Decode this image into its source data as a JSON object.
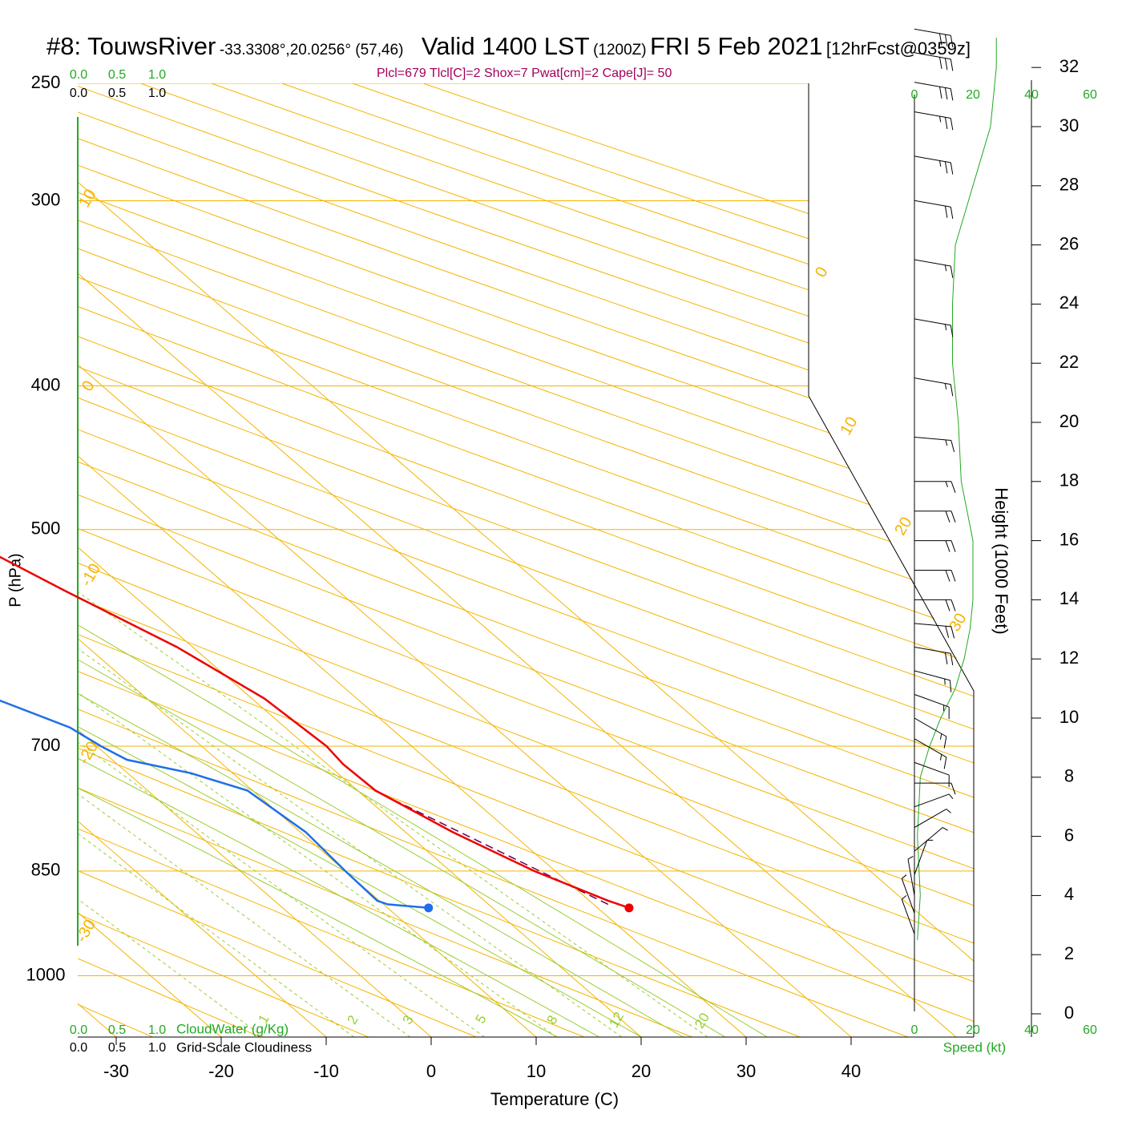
{
  "header": {
    "station": "#8: TouwsRiver",
    "coords": "-33.3308°,20.0256° (57,46)",
    "valid_label": "Valid 1400 LST",
    "zulu": "(1200Z)",
    "date": "FRI 5 Feb 2021",
    "forecast": "[12hrFcst@0359z]"
  },
  "stats_line": "Plcl=679 Tlcl[C]=2 Shox=7 Pwat[cm]=2 Cape[J]= 50",
  "colors": {
    "isotherm": "#f5b400",
    "dry_adiabat": "#9acd32",
    "mixing_ratio": "#9acd32",
    "temperature": "#ee0000",
    "dewpoint": "#1e6fe8",
    "parcel": "#6a0050",
    "cloud_scale": "#22aa22",
    "speed_curve": "#22aa22",
    "barb": "#000000"
  },
  "chart_data": {
    "type": "line",
    "subtype": "skew-T log-P sounding",
    "xlabel": "Temperature (C)",
    "ylabel": "P (hPa)",
    "right_axis_label": "Height (1000 Feet)",
    "x_ticks": [
      "-30",
      "-20",
      "-10",
      "0",
      "10",
      "20",
      "30",
      "40"
    ],
    "pressure_ticks": [
      "250",
      "300",
      "400",
      "500",
      "700",
      "850",
      "1000"
    ],
    "height_ticks": [
      "0",
      "2",
      "4",
      "6",
      "8",
      "10",
      "12",
      "14",
      "16",
      "18",
      "20",
      "22",
      "24",
      "26",
      "28",
      "30",
      "32"
    ],
    "isotherm_labels": [
      "10",
      "0",
      "-10",
      "-20",
      "-30",
      "0",
      "10",
      "20",
      "30"
    ],
    "mixing_ratio_labels": [
      "1",
      "2",
      "3",
      "5",
      "8",
      "12",
      "20"
    ],
    "cloud_scale_top": [
      "0.0",
      "0.5",
      "1.0"
    ],
    "cloud_scale_bottom": [
      "0.0",
      "0.5",
      "1.0"
    ],
    "cloudwater_label": "CloudWater (g/Kg)",
    "cloudiness_label": "Grid-Scale Cloudiness",
    "speed_ticks_top": [
      "0",
      "20",
      "40",
      "60"
    ],
    "speed_ticks_bottom": [
      "0",
      "20",
      "40",
      "60"
    ],
    "speed_label": "Speed (kt)",
    "temperature_profile": [
      {
        "p": 900,
        "t": 33.0
      },
      {
        "p": 890,
        "t": 31.8
      },
      {
        "p": 850,
        "t": 28.0
      },
      {
        "p": 800,
        "t": 24.5
      },
      {
        "p": 750,
        "t": 21.7
      },
      {
        "p": 720,
        "t": 21.5
      },
      {
        "p": 700,
        "t": 21.9
      },
      {
        "p": 650,
        "t": 21.2
      },
      {
        "p": 600,
        "t": 18.5
      },
      {
        "p": 550,
        "t": 14.0
      },
      {
        "p": 500,
        "t": 9.5
      },
      {
        "p": 450,
        "t": 4.8
      },
      {
        "p": 400,
        "t": -0.8
      },
      {
        "p": 370,
        "t": -5.0
      },
      {
        "p": 350,
        "t": -8.5
      },
      {
        "p": 300,
        "t": -17.5
      },
      {
        "p": 280,
        "t": -21.5
      },
      {
        "p": 265,
        "t": -24.0
      }
    ],
    "dewpoint_profile": [
      {
        "p": 900,
        "t": 13.9
      },
      {
        "p": 895,
        "t": 10.4
      },
      {
        "p": 890,
        "t": 9.8
      },
      {
        "p": 850,
        "t": 10.0
      },
      {
        "p": 800,
        "t": 10.5
      },
      {
        "p": 750,
        "t": 9.5
      },
      {
        "p": 730,
        "t": 6.0
      },
      {
        "p": 715,
        "t": 1.4
      },
      {
        "p": 700,
        "t": 0.4
      },
      {
        "p": 680,
        "t": -0.5
      },
      {
        "p": 650,
        "t": -4.5
      },
      {
        "p": 600,
        "t": -11.5
      },
      {
        "p": 550,
        "t": -20.0
      },
      {
        "p": 500,
        "t": -27.5
      },
      {
        "p": 450,
        "t": -34.5
      },
      {
        "p": 400,
        "t": -43.0
      },
      {
        "p": 370,
        "t": -44.0
      },
      {
        "p": 350,
        "t": -45.0
      },
      {
        "p": 300,
        "t": -48.0
      },
      {
        "p": 280,
        "t": -49.5
      },
      {
        "p": 265,
        "t": -51.5
      }
    ],
    "parcel_path": [
      {
        "p": 895,
        "t": 31.4
      },
      {
        "p": 750,
        "t": 21.6
      }
    ],
    "surface_temperature": {
      "p": 900,
      "t": 33.0
    },
    "surface_dewpoint": {
      "p": 900,
      "t": 13.9
    },
    "wind_speed_curve": [
      {
        "h": 2.5,
        "s": 1
      },
      {
        "h": 4,
        "s": 2
      },
      {
        "h": 6,
        "s": 1
      },
      {
        "h": 8,
        "s": 2
      },
      {
        "h": 9,
        "s": 5
      },
      {
        "h": 10,
        "s": 9
      },
      {
        "h": 11,
        "s": 14
      },
      {
        "h": 12,
        "s": 17
      },
      {
        "h": 13,
        "s": 19
      },
      {
        "h": 14,
        "s": 20
      },
      {
        "h": 16,
        "s": 20
      },
      {
        "h": 18,
        "s": 16
      },
      {
        "h": 20,
        "s": 15
      },
      {
        "h": 22,
        "s": 13
      },
      {
        "h": 24,
        "s": 13
      },
      {
        "h": 26,
        "s": 14
      },
      {
        "h": 28,
        "s": 20
      },
      {
        "h": 30,
        "s": 26
      },
      {
        "h": 32,
        "s": 28
      },
      {
        "h": 33,
        "s": 28
      }
    ],
    "wind_barbs": [
      {
        "h": 2.7,
        "dir": 160,
        "spd": 3
      },
      {
        "h": 3.4,
        "dir": 160,
        "spd": 3
      },
      {
        "h": 4.0,
        "dir": 170,
        "spd": 3
      },
      {
        "h": 4.7,
        "dir": 200,
        "spd": 4
      },
      {
        "h": 5.5,
        "dir": 230,
        "spd": 4
      },
      {
        "h": 6.3,
        "dir": 240,
        "spd": 5
      },
      {
        "h": 7.0,
        "dir": 250,
        "spd": 7
      },
      {
        "h": 7.8,
        "dir": 270,
        "spd": 10
      },
      {
        "h": 8.5,
        "dir": 290,
        "spd": 12
      },
      {
        "h": 9.3,
        "dir": 300,
        "spd": 14
      },
      {
        "h": 10.0,
        "dir": 300,
        "spd": 15
      },
      {
        "h": 10.8,
        "dir": 290,
        "spd": 16
      },
      {
        "h": 11.6,
        "dir": 285,
        "spd": 17
      },
      {
        "h": 12.4,
        "dir": 280,
        "spd": 18
      },
      {
        "h": 13.2,
        "dir": 275,
        "spd": 19
      },
      {
        "h": 14.0,
        "dir": 270,
        "spd": 20
      },
      {
        "h": 15.0,
        "dir": 270,
        "spd": 20
      },
      {
        "h": 16.0,
        "dir": 270,
        "spd": 20
      },
      {
        "h": 17.0,
        "dir": 270,
        "spd": 20
      },
      {
        "h": 18.0,
        "dir": 270,
        "spd": 17
      },
      {
        "h": 19.5,
        "dir": 275,
        "spd": 15
      },
      {
        "h": 21.5,
        "dir": 280,
        "spd": 14
      },
      {
        "h": 23.5,
        "dir": 280,
        "spd": 13
      },
      {
        "h": 25.5,
        "dir": 280,
        "spd": 14
      },
      {
        "h": 27.5,
        "dir": 280,
        "spd": 18
      },
      {
        "h": 29.0,
        "dir": 280,
        "spd": 23
      },
      {
        "h": 30.5,
        "dir": 280,
        "spd": 26
      },
      {
        "h": 31.5,
        "dir": 280,
        "spd": 28
      },
      {
        "h": 32.5,
        "dir": 280,
        "spd": 28
      },
      {
        "h": 33.3,
        "dir": 280,
        "spd": 28
      }
    ]
  }
}
